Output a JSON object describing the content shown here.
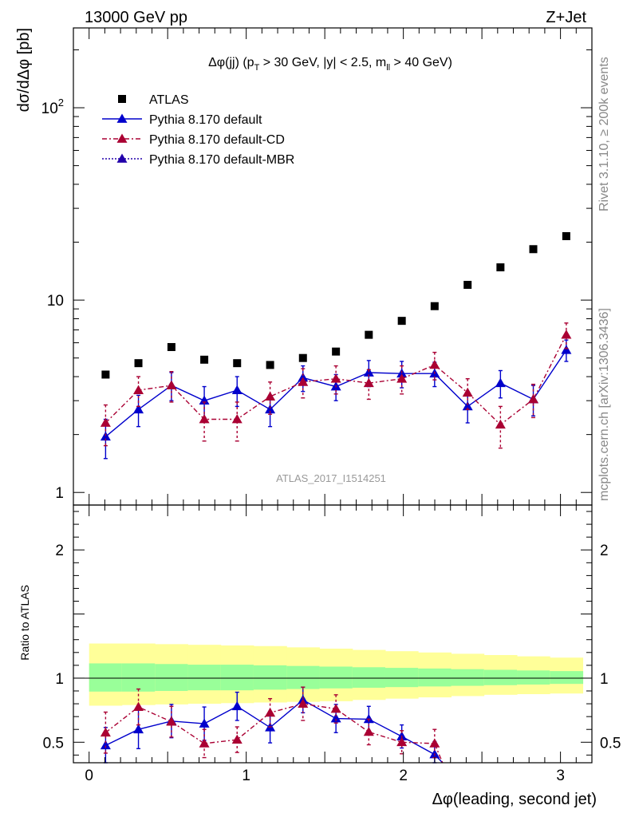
{
  "header": {
    "energy": "13000 GeV pp",
    "process": "Z+Jet",
    "selection": "Δφ(jj) (p_T > 30 GeV, |y| < 2.5, m_ll > 40 GeV)",
    "rivet": "Rivet 3.1.10, ≥ 200k events",
    "source": "mcplots.cern.ch [arXiv:1306.3436]",
    "analysis": "ATLAS_2017_I1514251"
  },
  "colors": {
    "data": "#000000",
    "default": "#0000cc",
    "cd": "#aa0033",
    "mbr": "#2200aa",
    "band_inner": "#99ff99",
    "band_outer": "#ffff99"
  },
  "chart_data": [
    {
      "type": "scatter",
      "panel": "main",
      "ylabel": "dσ/dΔφ [pb]",
      "yscale": "log",
      "ylim": [
        0.86,
        260
      ],
      "xlim": [
        -0.1,
        3.2
      ],
      "ytick_labels": [
        "1",
        "10",
        "10^2"
      ],
      "legend_position": "top-left",
      "x": [
        0.105,
        0.314,
        0.524,
        0.733,
        0.942,
        1.152,
        1.361,
        1.571,
        1.78,
        1.99,
        2.199,
        2.409,
        2.618,
        2.827,
        3.037
      ],
      "series": [
        {
          "name": "ATLAS",
          "style": "data",
          "values": [
            4.1,
            4.7,
            5.7,
            4.9,
            4.7,
            4.6,
            5.0,
            5.4,
            6.6,
            7.8,
            9.3,
            12.0,
            14.8,
            18.4,
            21.5
          ]
        },
        {
          "name": "Pythia 8.170 default",
          "style": "default",
          "values": [
            1.95,
            2.7,
            3.6,
            3.0,
            3.4,
            2.7,
            3.95,
            3.55,
            4.2,
            4.15,
            4.15,
            2.8,
            3.7,
            3.05,
            5.5
          ],
          "err": [
            0.45,
            0.5,
            0.6,
            0.55,
            0.6,
            0.5,
            0.6,
            0.55,
            0.65,
            0.65,
            0.6,
            0.5,
            0.6,
            0.55,
            0.7
          ]
        },
        {
          "name": "Pythia 8.170 default-CD",
          "style": "cd",
          "values": [
            2.3,
            3.4,
            3.6,
            2.4,
            2.4,
            3.15,
            3.75,
            3.9,
            3.7,
            3.9,
            4.6,
            3.3,
            2.25,
            3.05,
            6.6
          ],
          "err": [
            0.55,
            0.6,
            0.65,
            0.55,
            0.55,
            0.6,
            0.65,
            0.65,
            0.65,
            0.65,
            0.75,
            0.6,
            0.55,
            0.6,
            1.0
          ]
        },
        {
          "name": "Pythia 8.170 default-MBR",
          "style": "mbr",
          "values": [],
          "err": []
        }
      ]
    },
    {
      "type": "scatter",
      "panel": "ratio",
      "ylabel": "Ratio to ATLAS",
      "xlabel": "Δφ(leading, second jet)",
      "ylim": [
        0.34,
        2.35
      ],
      "xlim": [
        -0.1,
        3.2
      ],
      "xtick_labels": [
        "0",
        "1",
        "2",
        "3"
      ],
      "ytick_labels": [
        "0.5",
        "1",
        "2"
      ],
      "x": [
        0.105,
        0.314,
        0.524,
        0.733,
        0.942,
        1.152,
        1.361,
        1.571,
        1.78,
        1.99,
        2.199
      ],
      "band": {
        "edges": [
          0.0,
          0.209,
          0.419,
          0.628,
          0.838,
          1.047,
          1.257,
          1.466,
          1.676,
          1.885,
          2.094,
          2.304,
          2.513,
          2.723,
          2.932,
          3.142
        ],
        "inner_lo": [
          0.895,
          0.895,
          0.9,
          0.905,
          0.905,
          0.91,
          0.915,
          0.92,
          0.925,
          0.93,
          0.935,
          0.94,
          0.945,
          0.95,
          0.955
        ],
        "inner_hi": [
          1.115,
          1.115,
          1.11,
          1.105,
          1.105,
          1.1,
          1.095,
          1.09,
          1.085,
          1.08,
          1.075,
          1.07,
          1.065,
          1.06,
          1.055
        ],
        "outer_lo": [
          0.785,
          0.79,
          0.795,
          0.8,
          0.805,
          0.81,
          0.815,
          0.82,
          0.83,
          0.84,
          0.85,
          0.86,
          0.87,
          0.875,
          0.88
        ],
        "outer_hi": [
          1.27,
          1.27,
          1.265,
          1.26,
          1.255,
          1.25,
          1.24,
          1.23,
          1.22,
          1.21,
          1.2,
          1.19,
          1.18,
          1.17,
          1.16
        ]
      },
      "series": [
        {
          "name": "Pythia 8.170 default",
          "style": "default",
          "values": [
            0.475,
            0.6,
            0.665,
            0.645,
            0.78,
            0.615,
            0.83,
            0.685,
            0.68,
            0.545,
            0.405
          ],
          "err": [
            0.14,
            0.15,
            0.13,
            0.13,
            0.11,
            0.12,
            0.1,
            0.11,
            0.1,
            0.09,
            0.1
          ]
        },
        {
          "name": "Pythia 8.170 default-CD",
          "style": "cd",
          "values": [
            0.575,
            0.775,
            0.66,
            0.49,
            0.52,
            0.73,
            0.8,
            0.76,
            0.58,
            0.5,
            0.49
          ],
          "err": [
            0.16,
            0.14,
            0.12,
            0.11,
            0.1,
            0.11,
            0.13,
            0.11,
            0.1,
            0.09,
            0.11
          ]
        }
      ]
    }
  ]
}
